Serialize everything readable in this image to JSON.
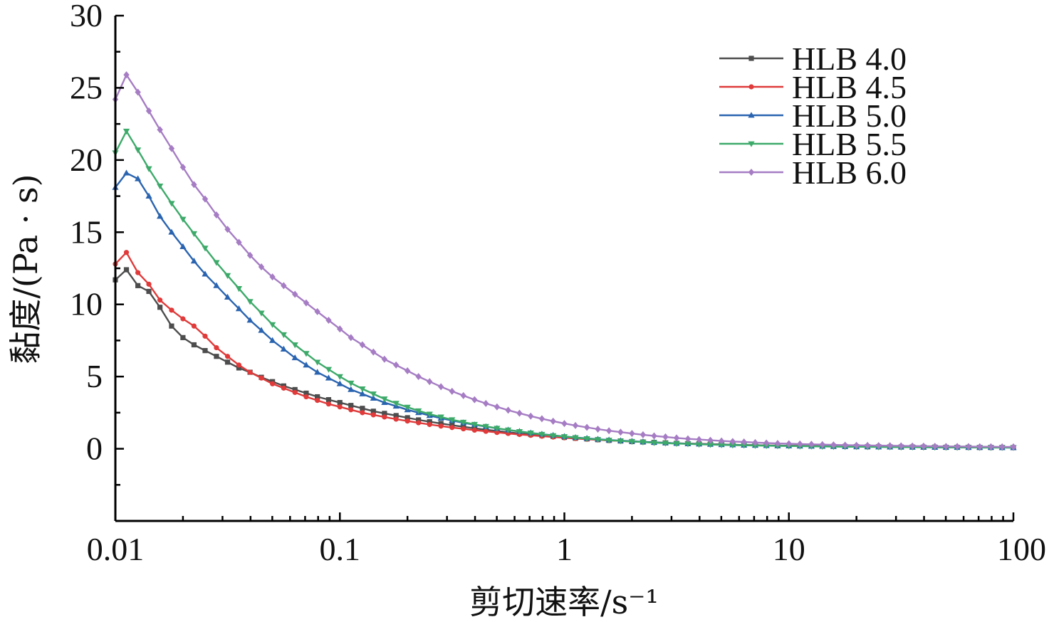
{
  "chart_data": {
    "type": "line",
    "title": "",
    "xlabel": "剪切速率/s⁻¹",
    "ylabel": "黏度/(Pa · s)",
    "x_scale": "log",
    "xlim": [
      0.01,
      100
    ],
    "ylim": [
      -5,
      30
    ],
    "x_ticks": [
      0.01,
      0.1,
      1,
      10,
      100
    ],
    "x_tick_labels": [
      "0.01",
      "0.1",
      "1",
      "10",
      "100"
    ],
    "y_ticks": [
      0,
      5,
      10,
      15,
      20,
      25,
      30
    ],
    "y_tick_labels": [
      "0",
      "5",
      "10",
      "15",
      "20",
      "25",
      "30"
    ],
    "grid": false,
    "legend_position": "top-right",
    "x": [
      0.01,
      0.0112,
      0.0126,
      0.0141,
      0.0158,
      0.0178,
      0.02,
      0.0224,
      0.0251,
      0.0282,
      0.0316,
      0.0355,
      0.0398,
      0.0447,
      0.0501,
      0.0562,
      0.0631,
      0.0708,
      0.0794,
      0.0891,
      0.1,
      0.112,
      0.126,
      0.141,
      0.158,
      0.178,
      0.2,
      0.224,
      0.251,
      0.282,
      0.316,
      0.355,
      0.398,
      0.447,
      0.501,
      0.562,
      0.631,
      0.708,
      0.794,
      0.891,
      1,
      1.12,
      1.26,
      1.41,
      1.58,
      1.78,
      2,
      2.24,
      2.51,
      2.82,
      3.16,
      3.55,
      3.98,
      4.47,
      5.01,
      5.62,
      6.31,
      7.08,
      7.94,
      8.91,
      10,
      11.2,
      12.6,
      14.1,
      15.8,
      17.8,
      20,
      22.4,
      25.1,
      28.2,
      31.6,
      35.5,
      39.8,
      44.7,
      50.1,
      56.2,
      63.1,
      70.8,
      79.4,
      89.1,
      100
    ],
    "series": [
      {
        "name": "HLB 4.0",
        "color": "#4d4d4d",
        "marker": "square",
        "values": [
          11.7,
          12.4,
          11.3,
          10.9,
          9.8,
          8.5,
          7.7,
          7.2,
          6.8,
          6.4,
          6.0,
          5.6,
          5.3,
          4.95,
          4.65,
          4.35,
          4.1,
          3.85,
          3.6,
          3.4,
          3.2,
          3.0,
          2.8,
          2.6,
          2.45,
          2.3,
          2.15,
          2.0,
          1.87,
          1.75,
          1.63,
          1.52,
          1.42,
          1.32,
          1.23,
          1.14,
          1.06,
          0.99,
          0.92,
          0.85,
          0.79,
          0.73,
          0.68,
          0.63,
          0.58,
          0.54,
          0.5,
          0.47,
          0.44,
          0.41,
          0.38,
          0.36,
          0.34,
          0.32,
          0.3,
          0.28,
          0.26,
          0.25,
          0.23,
          0.22,
          0.21,
          0.2,
          0.19,
          0.18,
          0.17,
          0.16,
          0.15,
          0.14,
          0.14,
          0.13,
          0.12,
          0.12,
          0.11,
          0.11,
          0.1,
          0.1,
          0.1,
          0.09,
          0.09,
          0.09,
          0.08
        ]
      },
      {
        "name": "HLB 4.5",
        "color": "#e03a3a",
        "marker": "circle",
        "values": [
          12.8,
          13.6,
          12.2,
          11.4,
          10.3,
          9.6,
          9.0,
          8.5,
          7.8,
          7.0,
          6.4,
          5.8,
          5.3,
          4.9,
          4.5,
          4.2,
          3.9,
          3.6,
          3.35,
          3.1,
          2.9,
          2.7,
          2.5,
          2.35,
          2.2,
          2.05,
          1.92,
          1.8,
          1.68,
          1.57,
          1.47,
          1.38,
          1.29,
          1.21,
          1.13,
          1.06,
          0.99,
          0.93,
          0.87,
          0.81,
          0.76,
          0.71,
          0.66,
          0.62,
          0.58,
          0.54,
          0.5,
          0.47,
          0.44,
          0.41,
          0.38,
          0.36,
          0.34,
          0.32,
          0.3,
          0.28,
          0.26,
          0.25,
          0.23,
          0.22,
          0.21,
          0.2,
          0.19,
          0.18,
          0.17,
          0.16,
          0.15,
          0.14,
          0.14,
          0.13,
          0.12,
          0.12,
          0.11,
          0.11,
          0.1,
          0.1,
          0.1,
          0.09,
          0.09,
          0.09,
          0.08
        ]
      },
      {
        "name": "HLB 5.0",
        "color": "#2a64b0",
        "marker": "triangle-up",
        "values": [
          18.1,
          19.1,
          18.7,
          17.5,
          16.1,
          15.0,
          14.0,
          13.0,
          12.1,
          11.3,
          10.5,
          9.7,
          8.9,
          8.2,
          7.5,
          6.9,
          6.3,
          5.8,
          5.3,
          4.9,
          4.5,
          4.1,
          3.8,
          3.5,
          3.2,
          2.95,
          2.7,
          2.5,
          2.3,
          2.12,
          1.95,
          1.8,
          1.66,
          1.53,
          1.41,
          1.3,
          1.2,
          1.1,
          1.01,
          0.93,
          0.85,
          0.78,
          0.72,
          0.66,
          0.61,
          0.56,
          0.52,
          0.48,
          0.44,
          0.41,
          0.38,
          0.35,
          0.33,
          0.31,
          0.29,
          0.27,
          0.25,
          0.24,
          0.22,
          0.21,
          0.2,
          0.19,
          0.18,
          0.17,
          0.16,
          0.15,
          0.14,
          0.14,
          0.13,
          0.12,
          0.12,
          0.11,
          0.11,
          0.1,
          0.1,
          0.1,
          0.09,
          0.09,
          0.09,
          0.08,
          0.08
        ]
      },
      {
        "name": "HLB 5.5",
        "color": "#3daa6a",
        "marker": "triangle-down",
        "values": [
          20.5,
          22.0,
          20.7,
          19.4,
          18.2,
          17.0,
          15.9,
          14.9,
          13.9,
          12.9,
          12.0,
          11.1,
          10.2,
          9.4,
          8.6,
          7.9,
          7.2,
          6.6,
          6.0,
          5.5,
          5.0,
          4.55,
          4.15,
          3.8,
          3.45,
          3.15,
          2.88,
          2.63,
          2.4,
          2.2,
          2.01,
          1.84,
          1.69,
          1.55,
          1.42,
          1.3,
          1.19,
          1.09,
          1.0,
          0.91,
          0.84,
          0.77,
          0.7,
          0.64,
          0.59,
          0.54,
          0.5,
          0.46,
          0.42,
          0.39,
          0.36,
          0.34,
          0.31,
          0.29,
          0.27,
          0.25,
          0.24,
          0.22,
          0.21,
          0.2,
          0.19,
          0.18,
          0.17,
          0.16,
          0.15,
          0.14,
          0.14,
          0.13,
          0.12,
          0.12,
          0.11,
          0.11,
          0.1,
          0.1,
          0.09,
          0.09,
          0.09,
          0.08,
          0.08,
          0.08,
          0.08
        ]
      },
      {
        "name": "HLB 6.0",
        "color": "#a67dc4",
        "marker": "diamond",
        "values": [
          24.2,
          25.9,
          24.7,
          23.4,
          22.1,
          20.8,
          19.5,
          18.3,
          17.3,
          16.2,
          15.2,
          14.3,
          13.4,
          12.6,
          11.9,
          11.3,
          10.7,
          10.1,
          9.5,
          8.9,
          8.3,
          7.7,
          7.2,
          6.7,
          6.2,
          5.8,
          5.4,
          5.0,
          4.65,
          4.3,
          3.98,
          3.68,
          3.4,
          3.14,
          2.9,
          2.67,
          2.46,
          2.26,
          2.08,
          1.91,
          1.75,
          1.61,
          1.48,
          1.36,
          1.25,
          1.15,
          1.06,
          0.97,
          0.89,
          0.82,
          0.75,
          0.69,
          0.64,
          0.59,
          0.54,
          0.5,
          0.47,
          0.43,
          0.4,
          0.37,
          0.35,
          0.33,
          0.31,
          0.29,
          0.27,
          0.25,
          0.24,
          0.23,
          0.22,
          0.21,
          0.2,
          0.19,
          0.18,
          0.17,
          0.16,
          0.16,
          0.15,
          0.14,
          0.14,
          0.13,
          0.13
        ]
      }
    ]
  }
}
